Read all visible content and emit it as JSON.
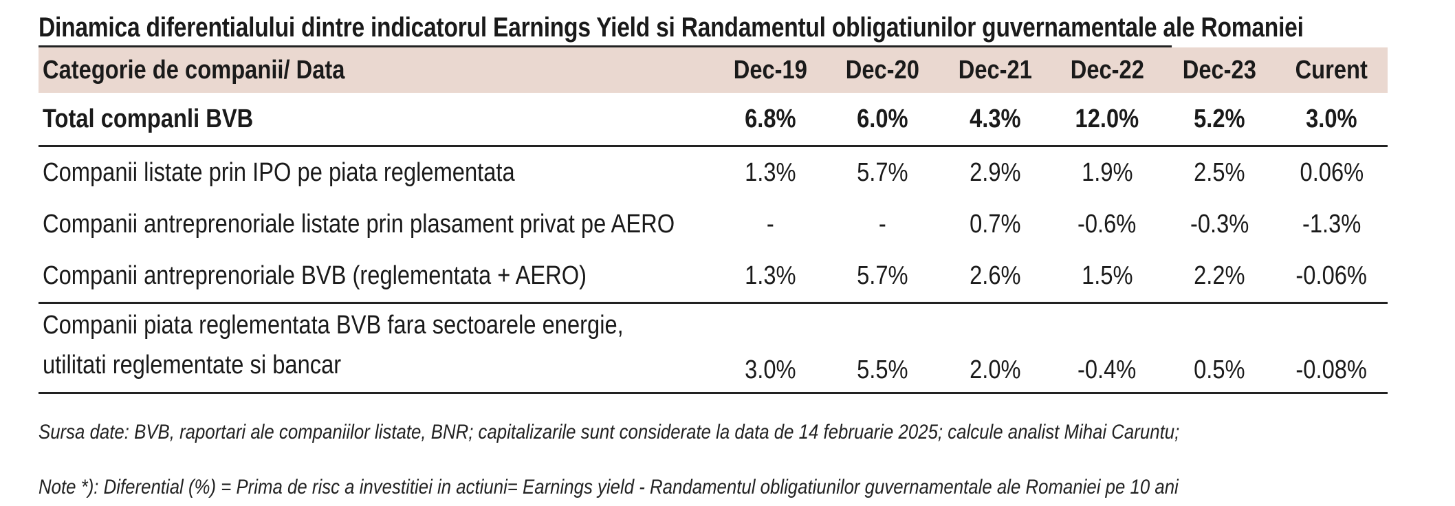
{
  "title": "Dinamica diferentialului dintre indicatorul Earnings Yield si Randamentul obligatiunilor guvernamentale ale Romaniei",
  "header": {
    "category": "Categorie de companii/ Data",
    "columns": [
      "Dec-19",
      "Dec-20",
      "Dec-21",
      "Dec-22",
      "Dec-23",
      "Curent"
    ]
  },
  "rows": [
    {
      "label": "Total companli BVB",
      "values": [
        "6.8%",
        "6.0%",
        "4.3%",
        "12.0%",
        "5.2%",
        "3.0%"
      ]
    },
    {
      "label": "Companii listate prin IPO pe piata reglementata",
      "values": [
        "1.3%",
        "5.7%",
        "2.9%",
        "1.9%",
        "2.5%",
        "0.06%"
      ]
    },
    {
      "label": "Companii antreprenoriale listate prin plasament privat pe AERO",
      "values": [
        "-",
        "-",
        "0.7%",
        "-0.6%",
        "-0.3%",
        "-1.3%"
      ]
    },
    {
      "label": "Companii antreprenoriale BVB (reglementata + AERO)",
      "values": [
        "1.3%",
        "5.7%",
        "2.6%",
        "1.5%",
        "2.2%",
        "-0.06%"
      ]
    },
    {
      "label_line1": "Companii piata reglementata BVB fara sectoarele energie,",
      "label_line2": "utilitati reglementate si bancar",
      "values": [
        "3.0%",
        "5.5%",
        "2.0%",
        "-0.4%",
        "0.5%",
        "-0.08%"
      ]
    }
  ],
  "source": "Sursa date: BVB, raportari ale companiilor listate, BNR; capitalizarile sunt considerate la data de 14 februarie 2025; calcule analist Mihai Caruntu;",
  "note": "Note *): Diferential (%) = Prima de risc  a investitiei in actiuni= Earnings yield - Randamentul obligatiunilor guvernamentale ale Romaniei pe 10 ani"
}
